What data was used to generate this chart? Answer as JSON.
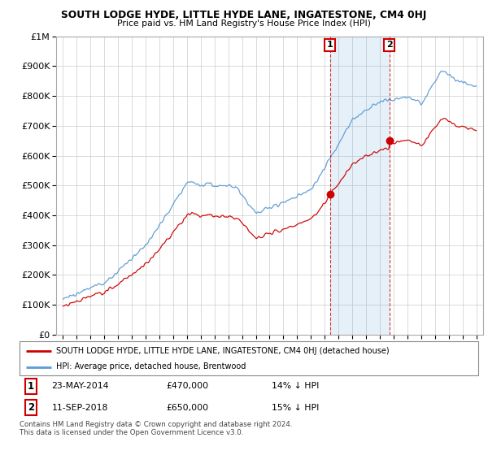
{
  "title": "SOUTH LODGE HYDE, LITTLE HYDE LANE, INGATESTONE, CM4 0HJ",
  "subtitle": "Price paid vs. HM Land Registry's House Price Index (HPI)",
  "legend_property": "SOUTH LODGE HYDE, LITTLE HYDE LANE, INGATESTONE, CM4 0HJ (detached house)",
  "legend_hpi": "HPI: Average price, detached house, Brentwood",
  "annotation1_date": "23-MAY-2014",
  "annotation1_price": "£470,000",
  "annotation1_pct": "14% ↓ HPI",
  "annotation1_year": 2014.38,
  "annotation1_value": 470000,
  "annotation2_date": "11-SEP-2018",
  "annotation2_price": "£650,000",
  "annotation2_pct": "15% ↓ HPI",
  "annotation2_year": 2018.7,
  "annotation2_value": 650000,
  "footer": "Contains HM Land Registry data © Crown copyright and database right 2024.\nThis data is licensed under the Open Government Licence v3.0.",
  "property_color": "#cc0000",
  "hpi_color": "#5b9bd5",
  "shade_color": "#ddeeff",
  "background_color": "#ffffff",
  "plot_bg_color": "#ffffff",
  "ylim": [
    0,
    1000000
  ],
  "xlim_start": 1994.5,
  "xlim_end": 2025.5
}
